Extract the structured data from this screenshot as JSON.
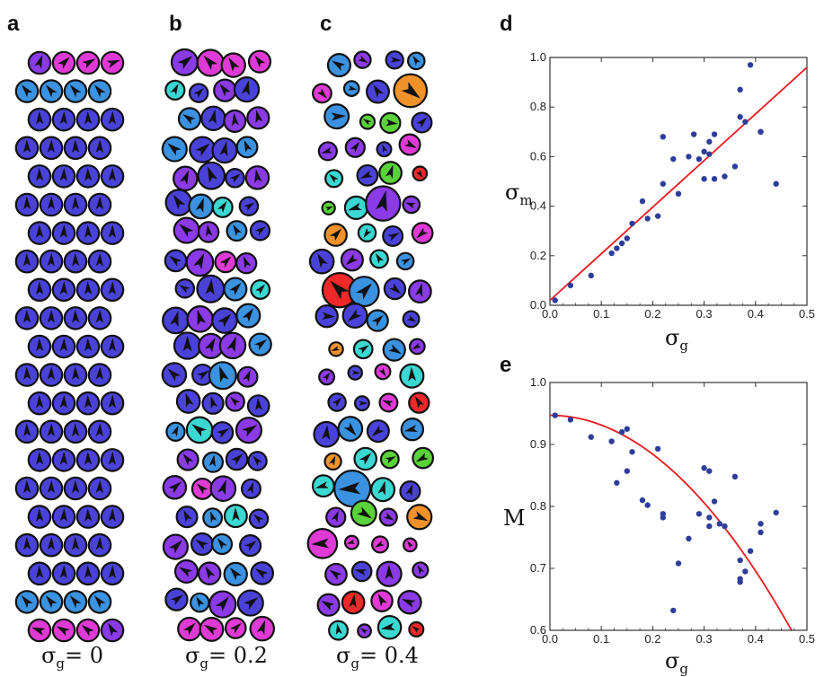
{
  "lattice_panels": {
    "a": {
      "letter": "a",
      "caption_sym": "σ",
      "caption_sub": "g",
      "caption_value": "= 0"
    },
    "b": {
      "letter": "b",
      "caption_sym": "σ",
      "caption_sub": "g",
      "caption_value": "= 0.2"
    },
    "c": {
      "letter": "c",
      "caption_sym": "σ",
      "caption_sub": "g",
      "caption_value": "= 0.4"
    }
  },
  "colors": {
    "magenta": "#e03ad6",
    "purple": "#8a3ae6",
    "blue": "#4a42d8",
    "sky": "#3a92e0",
    "cyan": "#3ad8d2",
    "green": "#5ad23a",
    "orange": "#f0922a",
    "red": "#f0282a",
    "axis_red": "#e8191e",
    "dot": "#2e3d9a"
  },
  "chart_data": [
    {
      "panel": "d",
      "type": "scatter",
      "title": "",
      "xlabel_sym": "σ",
      "xlabel_sub": "g",
      "ylabel_sym": "σ",
      "ylabel_sub": "m",
      "xlim": [
        0,
        0.5
      ],
      "ylim": [
        0,
        1.0
      ],
      "xticks": [
        "0.0",
        "0.1",
        "0.2",
        "0.3",
        "0.4",
        "0.5"
      ],
      "yticks": [
        "0.0",
        "0.2",
        "0.4",
        "0.6",
        "0.8",
        "1.0"
      ],
      "grid": false,
      "points": [
        [
          0.01,
          0.02
        ],
        [
          0.04,
          0.08
        ],
        [
          0.08,
          0.12
        ],
        [
          0.12,
          0.21
        ],
        [
          0.13,
          0.23
        ],
        [
          0.14,
          0.25
        ],
        [
          0.15,
          0.27
        ],
        [
          0.16,
          0.33
        ],
        [
          0.18,
          0.42
        ],
        [
          0.19,
          0.35
        ],
        [
          0.21,
          0.36
        ],
        [
          0.22,
          0.49
        ],
        [
          0.22,
          0.68
        ],
        [
          0.24,
          0.59
        ],
        [
          0.25,
          0.45
        ],
        [
          0.27,
          0.6
        ],
        [
          0.28,
          0.69
        ],
        [
          0.29,
          0.59
        ],
        [
          0.3,
          0.51
        ],
        [
          0.3,
          0.62
        ],
        [
          0.31,
          0.66
        ],
        [
          0.31,
          0.61
        ],
        [
          0.32,
          0.69
        ],
        [
          0.32,
          0.51
        ],
        [
          0.34,
          0.52
        ],
        [
          0.36,
          0.56
        ],
        [
          0.37,
          0.87
        ],
        [
          0.37,
          0.76
        ],
        [
          0.38,
          0.74
        ],
        [
          0.39,
          0.97
        ],
        [
          0.41,
          0.7
        ],
        [
          0.41,
          0.7
        ],
        [
          0.44,
          0.49
        ]
      ],
      "fit": {
        "type": "linear",
        "x": [
          0,
          0.5
        ],
        "y": [
          0.02,
          0.96
        ]
      }
    },
    {
      "panel": "e",
      "type": "scatter",
      "title": "",
      "xlabel_sym": "σ",
      "xlabel_sub": "g",
      "ylabel_sym": "M",
      "ylabel_sub": "",
      "xlim": [
        0,
        0.5
      ],
      "ylim": [
        0.6,
        1.0
      ],
      "xticks": [
        "0.0",
        "0.1",
        "0.2",
        "0.3",
        "0.4",
        "0.5"
      ],
      "yticks": [
        "0.6",
        "0.7",
        "0.8",
        "0.9",
        "1.0"
      ],
      "grid": false,
      "points": [
        [
          0.01,
          0.947
        ],
        [
          0.04,
          0.94
        ],
        [
          0.08,
          0.912
        ],
        [
          0.12,
          0.905
        ],
        [
          0.13,
          0.838
        ],
        [
          0.14,
          0.92
        ],
        [
          0.15,
          0.925
        ],
        [
          0.15,
          0.857
        ],
        [
          0.16,
          0.888
        ],
        [
          0.18,
          0.81
        ],
        [
          0.19,
          0.802
        ],
        [
          0.21,
          0.893
        ],
        [
          0.22,
          0.788
        ],
        [
          0.22,
          0.782
        ],
        [
          0.24,
          0.632
        ],
        [
          0.25,
          0.708
        ],
        [
          0.27,
          0.748
        ],
        [
          0.29,
          0.788
        ],
        [
          0.3,
          0.862
        ],
        [
          0.31,
          0.857
        ],
        [
          0.31,
          0.768
        ],
        [
          0.31,
          0.782
        ],
        [
          0.32,
          0.808
        ],
        [
          0.33,
          0.772
        ],
        [
          0.34,
          0.768
        ],
        [
          0.36,
          0.848
        ],
        [
          0.37,
          0.713
        ],
        [
          0.37,
          0.683
        ],
        [
          0.37,
          0.678
        ],
        [
          0.38,
          0.695
        ],
        [
          0.39,
          0.728
        ],
        [
          0.41,
          0.772
        ],
        [
          0.41,
          0.758
        ],
        [
          0.44,
          0.79
        ]
      ],
      "fit": {
        "type": "quadratic",
        "a": 0.947,
        "b": 0.0,
        "c": -1.57
      }
    }
  ]
}
